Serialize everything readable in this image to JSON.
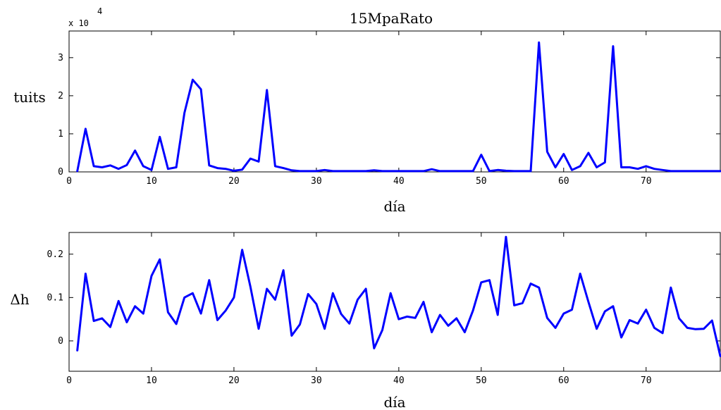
{
  "chart_data": [
    {
      "type": "line",
      "title": "15MpaRato",
      "xlabel": "día",
      "ylabel": "tuits",
      "y_exponent_label": "x 10",
      "y_exponent_power": "4",
      "xlim": [
        0,
        79
      ],
      "ylim": [
        0,
        3.7
      ],
      "xticks": [
        0,
        10,
        20,
        30,
        40,
        50,
        60,
        70
      ],
      "yticks": [
        0,
        1,
        2,
        3
      ],
      "color": "#0000ff",
      "series": [
        {
          "x": [
            1,
            2,
            3,
            4,
            5,
            6,
            7,
            8,
            9,
            10,
            11,
            12,
            13,
            14,
            15,
            16,
            17,
            18,
            19,
            20,
            21,
            22,
            23,
            24,
            25,
            26,
            27,
            28,
            29,
            30,
            31,
            32,
            33,
            34,
            35,
            36,
            37,
            38,
            39,
            40,
            41,
            42,
            43,
            44,
            45,
            46,
            47,
            48,
            49,
            50,
            51,
            52,
            53,
            54,
            55,
            56,
            57,
            58,
            59,
            60,
            61,
            62,
            63,
            64,
            65,
            66,
            67,
            68,
            69,
            70,
            71,
            72,
            73,
            74,
            75,
            76,
            77,
            78,
            79
          ],
          "values": [
            0.02,
            1.13,
            0.15,
            0.12,
            0.17,
            0.08,
            0.18,
            0.56,
            0.15,
            0.05,
            0.92,
            0.08,
            0.12,
            1.55,
            2.42,
            2.17,
            0.17,
            0.1,
            0.08,
            0.03,
            0.06,
            0.35,
            0.27,
            2.15,
            0.15,
            0.1,
            0.04,
            0.02,
            0.02,
            0.02,
            0.05,
            0.02,
            0.02,
            0.02,
            0.02,
            0.02,
            0.04,
            0.02,
            0.02,
            0.02,
            0.02,
            0.02,
            0.02,
            0.07,
            0.02,
            0.02,
            0.02,
            0.02,
            0.02,
            0.45,
            0.02,
            0.05,
            0.03,
            0.02,
            0.02,
            0.02,
            3.4,
            0.53,
            0.12,
            0.47,
            0.05,
            0.15,
            0.5,
            0.12,
            0.25,
            3.3,
            0.12,
            0.12,
            0.08,
            0.15,
            0.08,
            0.05,
            0.02,
            0.02,
            0.02,
            0.02,
            0.02,
            0.02,
            0.02
          ]
        }
      ]
    },
    {
      "type": "line",
      "title": "",
      "xlabel": "día",
      "ylabel": "Δh",
      "xlim": [
        0,
        79
      ],
      "ylim": [
        -0.07,
        0.25
      ],
      "xticks": [
        0,
        10,
        20,
        30,
        40,
        50,
        60,
        70
      ],
      "yticks": [
        0,
        0.1,
        0.2
      ],
      "ytick_labels": [
        "0",
        "0.1",
        "0.2"
      ],
      "color": "#0000ff",
      "series": [
        {
          "x": [
            1,
            2,
            3,
            4,
            5,
            6,
            7,
            8,
            9,
            10,
            11,
            12,
            13,
            14,
            15,
            16,
            17,
            18,
            19,
            20,
            21,
            22,
            23,
            24,
            25,
            26,
            27,
            28,
            29,
            30,
            31,
            32,
            33,
            34,
            35,
            36,
            37,
            38,
            39,
            40,
            41,
            42,
            43,
            44,
            45,
            46,
            47,
            48,
            49,
            50,
            51,
            52,
            53,
            54,
            55,
            56,
            57,
            58,
            59,
            60,
            61,
            62,
            63,
            64,
            65,
            66,
            67,
            68,
            69,
            70,
            71,
            72,
            73,
            74,
            75,
            76,
            77,
            78,
            79
          ],
          "values": [
            -0.022,
            0.155,
            0.046,
            0.052,
            0.032,
            0.092,
            0.043,
            0.08,
            0.063,
            0.15,
            0.188,
            0.066,
            0.039,
            0.1,
            0.11,
            0.063,
            0.14,
            0.048,
            0.07,
            0.1,
            0.21,
            0.125,
            0.028,
            0.12,
            0.095,
            0.163,
            0.012,
            0.038,
            0.108,
            0.085,
            0.028,
            0.11,
            0.062,
            0.04,
            0.095,
            0.12,
            -0.017,
            0.025,
            0.11,
            0.05,
            0.056,
            0.053,
            0.09,
            0.02,
            0.06,
            0.035,
            0.052,
            0.02,
            0.07,
            0.135,
            0.14,
            0.06,
            0.24,
            0.082,
            0.087,
            0.132,
            0.123,
            0.053,
            0.03,
            0.063,
            0.072,
            0.155,
            0.09,
            0.028,
            0.068,
            0.08,
            0.008,
            0.048,
            0.04,
            0.072,
            0.03,
            0.018,
            0.123,
            0.052,
            0.03,
            0.027,
            0.028,
            0.047,
            -0.035
          ]
        }
      ]
    }
  ]
}
